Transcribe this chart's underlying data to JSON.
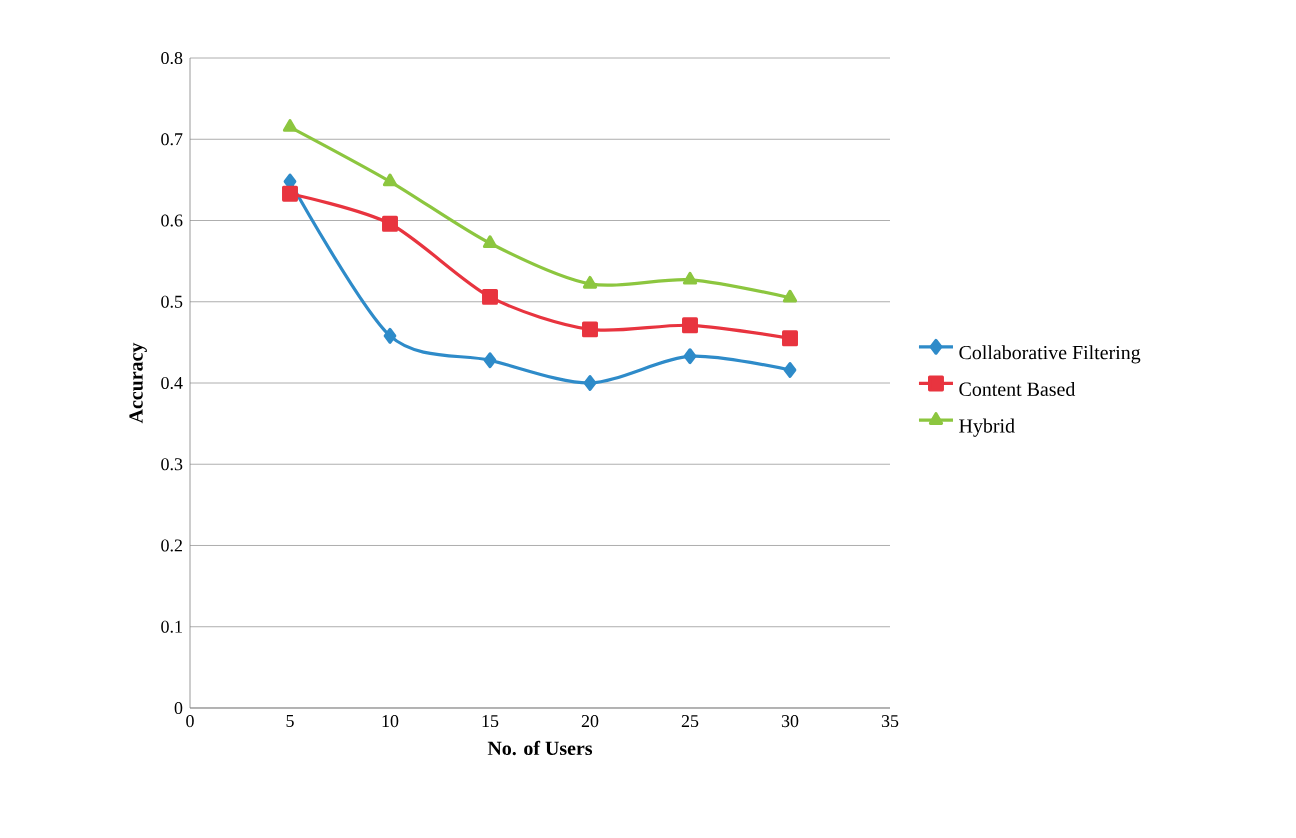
{
  "chart_data": {
    "type": "line",
    "xlabel": "No. of Users",
    "ylabel": "Accuracy",
    "x": [
      5,
      10,
      15,
      20,
      25,
      30
    ],
    "series": [
      {
        "name": "Collaborative Filtering",
        "color": "#2e8bc9",
        "marker": "diamond",
        "values": [
          0.648,
          0.458,
          0.428,
          0.4,
          0.433,
          0.416
        ]
      },
      {
        "name": "Content Based",
        "color": "#e8343f",
        "marker": "square",
        "values": [
          0.633,
          0.596,
          0.506,
          0.466,
          0.471,
          0.455
        ]
      },
      {
        "name": "Hybrid",
        "color": "#8cc63f",
        "marker": "triangle",
        "values": [
          0.715,
          0.648,
          0.572,
          0.522,
          0.527,
          0.505
        ]
      }
    ],
    "xlim": [
      0,
      35
    ],
    "xticks": [
      0,
      5,
      10,
      15,
      20,
      25,
      30,
      35
    ],
    "ylim": [
      0,
      0.8
    ],
    "yticks": [
      0,
      0.1,
      0.2,
      0.3,
      0.4,
      0.5,
      0.6,
      0.7,
      0.8
    ],
    "grid": "y",
    "legend": "right",
    "line_style": "solid"
  }
}
